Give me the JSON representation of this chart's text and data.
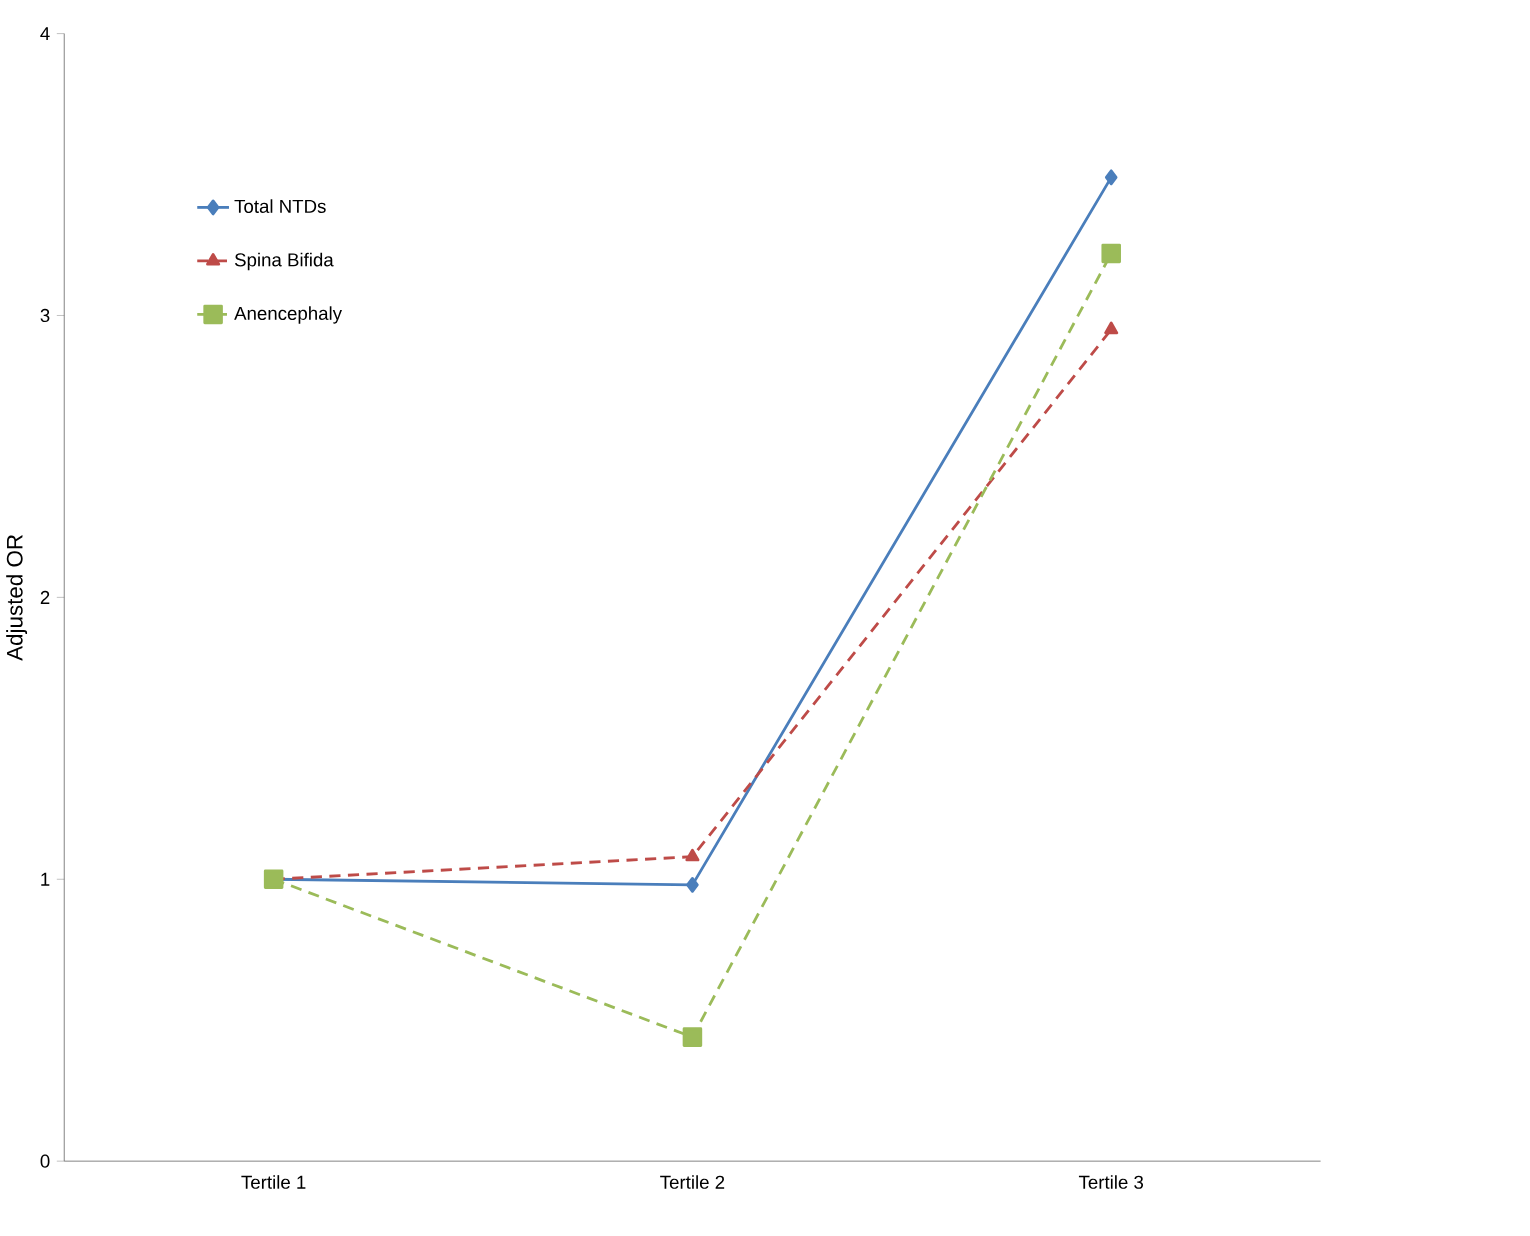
{
  "chart_data": {
    "type": "line",
    "ylabel": "Adjusted OR",
    "categories": [
      "Tertile 1",
      "Tertile 2",
      "Tertile 3"
    ],
    "series": [
      {
        "name": "Total NTDs",
        "color": "#4a7ebb",
        "values": [
          1.0,
          0.98,
          3.49
        ],
        "marker": "diamond",
        "line_style": "solid"
      },
      {
        "name": "Spina Bifida",
        "color": "#be4b48",
        "values": [
          1.0,
          1.08,
          2.95
        ],
        "marker": "triangle",
        "line_style": "dashed"
      },
      {
        "name": "Anencephaly",
        "color": "#9bbb59",
        "values": [
          1.0,
          0.44,
          3.22
        ],
        "marker": "square",
        "line_style": "dashed"
      }
    ],
    "ylim": [
      0,
      4
    ],
    "yticks": [
      0,
      1,
      2,
      3,
      4
    ],
    "grid": false,
    "legend": "top left"
  }
}
